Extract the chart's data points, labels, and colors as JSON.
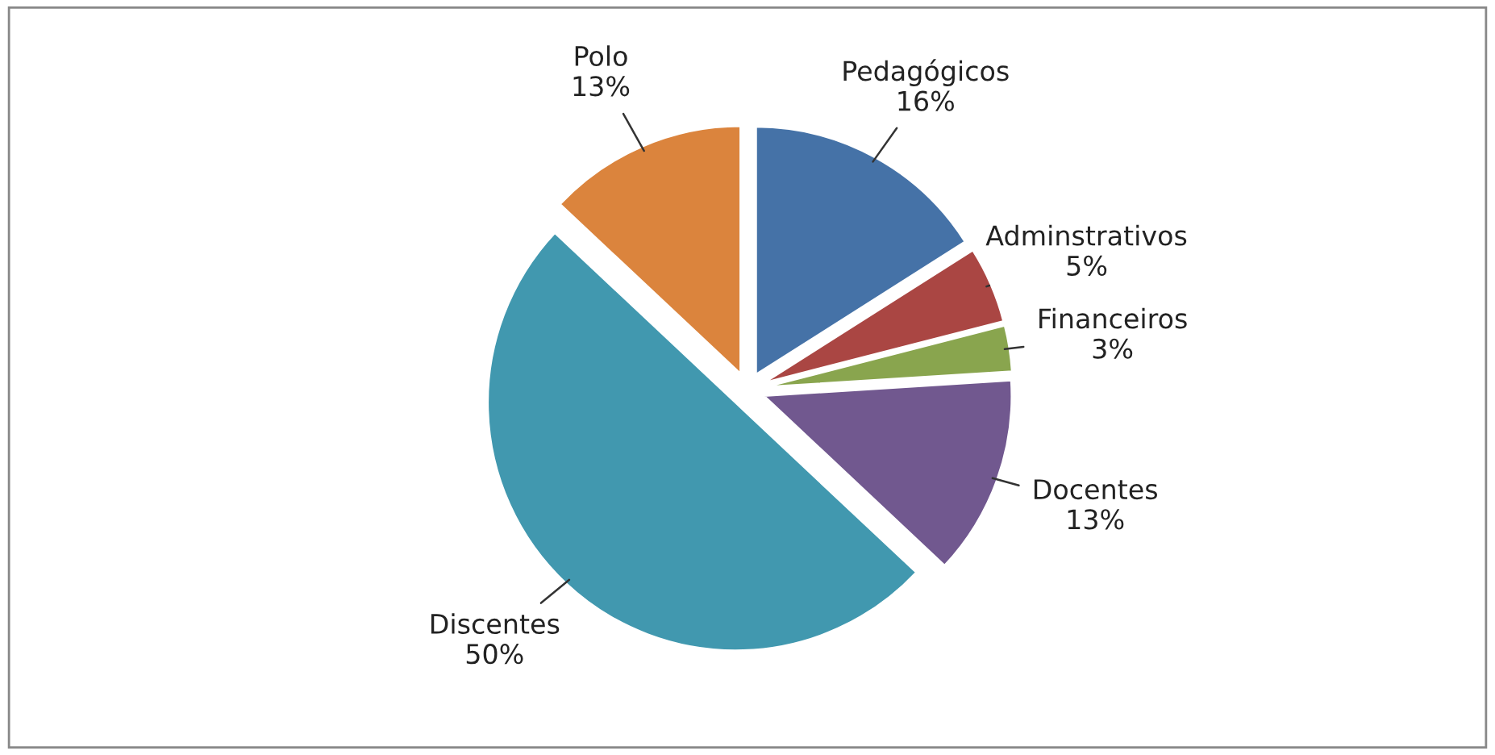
{
  "chart_data": {
    "type": "pie",
    "categories": [
      "Pedagógicos",
      "Adminstrativos",
      "Financeiros",
      "Docentes",
      "Discentes",
      "Polo"
    ],
    "values": [
      16,
      5,
      3,
      13,
      50,
      13
    ],
    "value_labels": [
      "16%",
      "5%",
      "3%",
      "13%",
      "50%",
      "13%"
    ],
    "colors": [
      "#4572a7",
      "#aa4643",
      "#89a54e",
      "#71588f",
      "#4198af",
      "#db843d"
    ],
    "legend": false
  }
}
